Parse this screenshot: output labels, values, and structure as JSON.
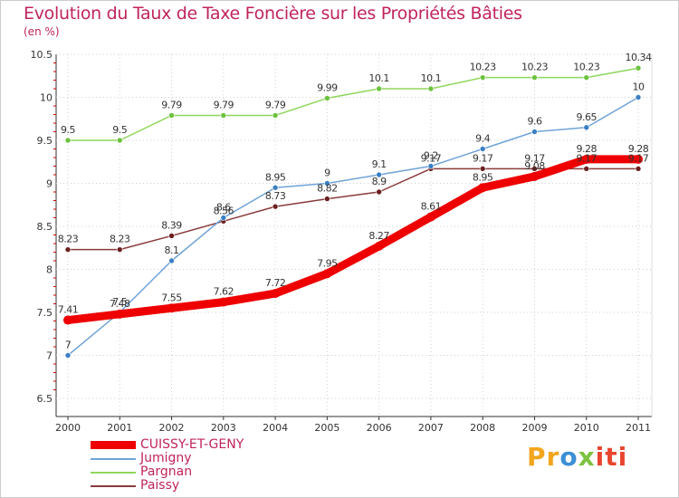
{
  "title": "Evolution du Taux de Taxe Foncière sur les Propriétés Bâties",
  "subtitle": "(en %)",
  "logo": {
    "text": "Proxiti",
    "parts": [
      "Pr",
      "o",
      "x",
      "iti"
    ]
  },
  "chart_data": {
    "type": "line",
    "x": [
      "2000",
      "2001",
      "2002",
      "2003",
      "2004",
      "2005",
      "2006",
      "2007",
      "2008",
      "2009",
      "2010",
      "2011"
    ],
    "ylim": [
      6.5,
      10.5
    ],
    "yticks": [
      "6.5",
      "7",
      "7.5",
      "8",
      "8.5",
      "9",
      "9.5",
      "10",
      "10.5"
    ],
    "grid": "horizontal",
    "legend_position": "bottom-left",
    "series": [
      {
        "name": "CUISSY-ET-GENY",
        "color": "#ee0000",
        "marker": "#ee0000",
        "width": 9,
        "values": [
          7.41,
          7.48,
          7.55,
          7.62,
          7.72,
          7.95,
          8.27,
          8.61,
          8.95,
          9.08,
          9.28,
          9.28
        ],
        "labels": [
          "7.41",
          "7.48",
          "7.55",
          "7.62",
          "7.72",
          "7.95",
          "8.27",
          "8.61",
          "8.95",
          "9.08",
          "9.28",
          "9.28"
        ]
      },
      {
        "name": "Jumigny",
        "color": "#6fa3d8",
        "marker": "#3a7fc4",
        "width": 1.5,
        "values": [
          7,
          7.5,
          8.1,
          8.6,
          8.95,
          9,
          9.1,
          9.2,
          9.4,
          9.6,
          9.65,
          10
        ],
        "labels": [
          "7",
          "7.5",
          "8.1",
          "8.6",
          "8.95",
          "9",
          "9.1",
          "9.2",
          "9.4",
          "9.6",
          "9.65",
          "10"
        ]
      },
      {
        "name": "Pargnan",
        "color": "#8fd65c",
        "marker": "#6cc23e",
        "width": 1.5,
        "values": [
          9.5,
          9.5,
          9.79,
          9.79,
          9.79,
          9.99,
          10.1,
          10.1,
          10.23,
          10.23,
          10.23,
          10.34
        ],
        "labels": [
          "9.5",
          "9.5",
          "9.79",
          "9.79",
          "9.79",
          "9.99",
          "10.1",
          "10.1",
          "10.23",
          "10.23",
          "10.23",
          "10.34"
        ]
      },
      {
        "name": "Paissy",
        "color": "#8a3b3b",
        "marker": "#6b1f1f",
        "width": 1.5,
        "values": [
          8.23,
          8.23,
          8.39,
          8.56,
          8.73,
          8.82,
          8.9,
          9.17,
          9.17,
          9.17,
          9.17,
          9.17
        ],
        "labels": [
          "8.23",
          "8.23",
          "8.39",
          "8.56",
          "8.73",
          "8.82",
          "8.9",
          "9.17",
          "9.17",
          "9.17",
          "9.17",
          "9.17"
        ]
      }
    ]
  }
}
